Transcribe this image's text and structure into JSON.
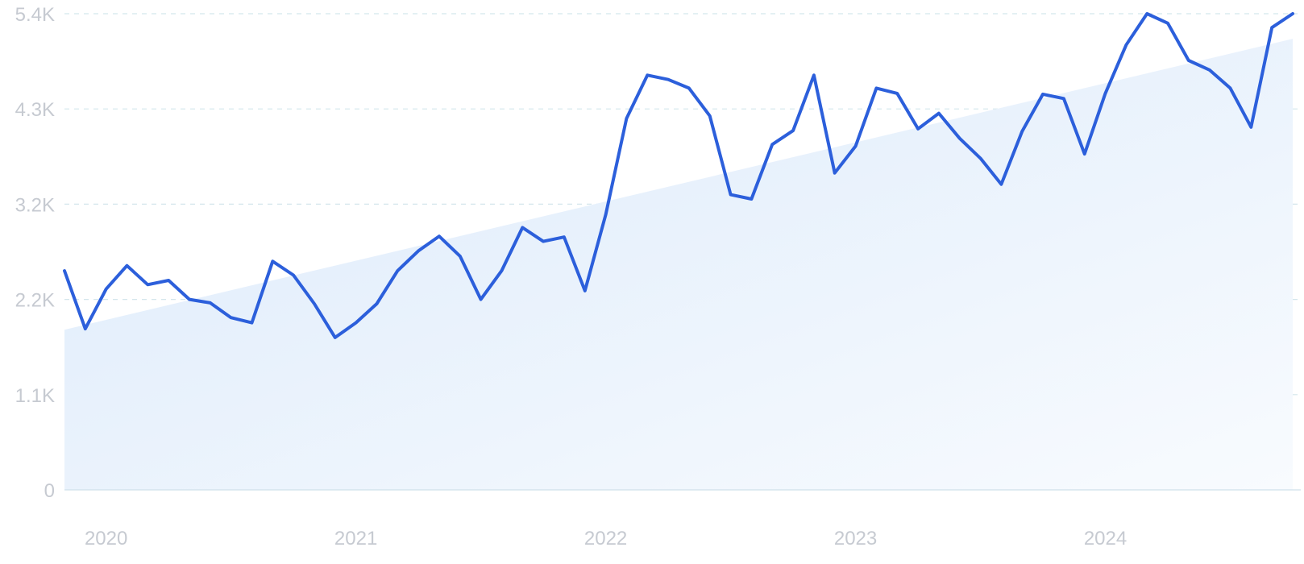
{
  "chart_data": {
    "type": "line",
    "title": "",
    "xlabel": "",
    "ylabel": "",
    "ylim": [
      0,
      5500
    ],
    "y_ticks": [
      {
        "value": 0,
        "label": "0"
      },
      {
        "value": 1100,
        "label": "1.1K"
      },
      {
        "value": 2200,
        "label": "2.2K"
      },
      {
        "value": 3300,
        "label": "3.2K"
      },
      {
        "value": 4400,
        "label": "4.3K"
      },
      {
        "value": 5500,
        "label": "5.4K"
      }
    ],
    "x_ticks": [
      {
        "value": "2020-01",
        "label": "2020"
      },
      {
        "value": "2021-01",
        "label": "2021"
      },
      {
        "value": "2022-01",
        "label": "2022"
      },
      {
        "value": "2023-01",
        "label": "2023"
      },
      {
        "value": "2024-01",
        "label": "2024"
      }
    ],
    "x_range": [
      "2019-11",
      "2024-10"
    ],
    "grid": true,
    "legend": "none",
    "colors": {
      "line": "#2c5fdb",
      "trend_fill": "#dceafb",
      "grid": "#d4e6ec"
    },
    "series": [
      {
        "x": [
          "2019-11",
          "2019-12",
          "2020-01",
          "2020-02",
          "2020-03",
          "2020-04",
          "2020-05",
          "2020-06",
          "2020-07",
          "2020-08",
          "2020-09",
          "2020-10",
          "2020-11",
          "2020-12",
          "2021-01",
          "2021-02",
          "2021-03",
          "2021-04",
          "2021-05",
          "2021-06",
          "2021-07",
          "2021-08",
          "2021-09",
          "2021-10",
          "2021-11",
          "2021-12",
          "2022-01",
          "2022-02",
          "2022-03",
          "2022-04",
          "2022-05",
          "2022-06",
          "2022-07",
          "2022-08",
          "2022-09",
          "2022-10",
          "2022-11",
          "2022-12",
          "2023-01",
          "2023-02",
          "2023-03",
          "2023-04",
          "2023-05",
          "2023-06",
          "2023-07",
          "2023-08",
          "2023-09",
          "2023-10",
          "2023-11",
          "2023-12",
          "2024-01",
          "2024-02",
          "2024-03",
          "2024-04",
          "2024-05",
          "2024-06",
          "2024-07",
          "2024-08",
          "2024-09",
          "2024-10"
        ],
        "values": [
          2530,
          1860,
          2320,
          2590,
          2370,
          2420,
          2200,
          2160,
          1990,
          1930,
          2640,
          2480,
          2150,
          1760,
          1930,
          2150,
          2530,
          2760,
          2930,
          2700,
          2200,
          2530,
          3030,
          2870,
          2920,
          2300,
          3180,
          4290,
          4790,
          4740,
          4640,
          4320,
          3410,
          3360,
          3990,
          4150,
          4790,
          3660,
          3970,
          4640,
          4580,
          4170,
          4350,
          4060,
          3830,
          3530,
          4140,
          4570,
          4520,
          3880,
          4580,
          5140,
          5500,
          5390,
          4960,
          4850,
          4640,
          4190,
          5340,
          5500
        ]
      }
    ],
    "trend": {
      "start": 1850,
      "end": 5210
    }
  }
}
